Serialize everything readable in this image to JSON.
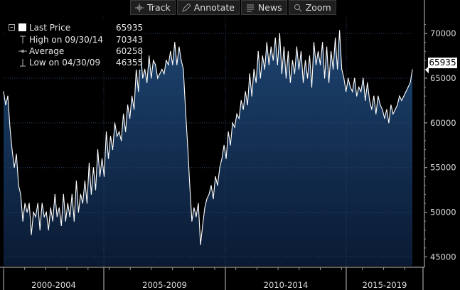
{
  "toolbar": {
    "track_label": "Track",
    "annotate_label": "Annotate",
    "news_label": "News",
    "zoom_label": "Zoom"
  },
  "legend": {
    "last": {
      "label": "Last Price",
      "value": "65935"
    },
    "high": {
      "label": "High on 09/30/14",
      "value": "70343"
    },
    "average": {
      "label": "Average",
      "value": "60258"
    },
    "low": {
      "label": "Low on 04/30/09",
      "value": "46355"
    }
  },
  "last_price_tag": "65935",
  "colors": {
    "background": "#000000",
    "area_top": "#1b3e66",
    "area_bottom": "#0b1d36",
    "line": "#ffffff",
    "grid": "#2a4566"
  },
  "chart_data": {
    "type": "area",
    "period_labels": [
      "2000-2004",
      "2005-2009",
      "2010-2014",
      "2015-2019"
    ],
    "y_ticks": [
      45000,
      50000,
      55000,
      60000,
      65000,
      70000
    ],
    "ylim": [
      44000,
      72000
    ],
    "xlim": [
      0,
      238
    ],
    "grid": true,
    "y_axis_position": "right",
    "legend_position": "top-left",
    "series": [
      {
        "values": [
          63500,
          62000,
          63000,
          59500,
          57000,
          55000,
          56500,
          53000,
          52000,
          49000,
          51000,
          50000,
          51000,
          47500,
          50000,
          49500,
          51000,
          48000,
          51000,
          49500,
          50000,
          48000,
          50500,
          49000,
          52000,
          49500,
          50500,
          48500,
          52000,
          49000,
          51000,
          49500,
          52000,
          49000,
          53500,
          50000,
          52000,
          51000,
          53500,
          51000,
          55500,
          52000,
          55000,
          52500,
          57000,
          54000,
          56000,
          54000,
          59000,
          56000,
          58500,
          57000,
          60000,
          58500,
          59000,
          58000,
          61000,
          59000,
          62000,
          60500,
          63000,
          61500,
          66000,
          63500,
          68000,
          65000,
          66000,
          64500,
          67500,
          65000,
          67000,
          66500,
          65000,
          65500,
          66000,
          65500,
          67000,
          66500,
          68000,
          66500,
          69000,
          66500,
          68500,
          67000,
          66000,
          61500,
          57500,
          53000,
          49000,
          50500,
          49500,
          51000,
          46355,
          48500,
          50500,
          51500,
          52000,
          53000,
          51500,
          54000,
          53000,
          55000,
          56000,
          57500,
          56000,
          59000,
          57500,
          60000,
          59500,
          61000,
          60500,
          62500,
          61500,
          63500,
          62000,
          65500,
          63000,
          66000,
          64500,
          68000,
          65000,
          67500,
          66000,
          69000,
          66500,
          68500,
          67000,
          69500,
          66500,
          70000,
          65500,
          68500,
          65000,
          68000,
          64500,
          67000,
          65500,
          68500,
          66000,
          68000,
          64500,
          67000,
          65000,
          67500,
          64000,
          69000,
          66500,
          68000,
          66500,
          69000,
          65000,
          68500,
          64500,
          68000,
          66000,
          69500,
          66000,
          70343,
          66000,
          65000,
          63500,
          65000,
          64000,
          63500,
          65000,
          63000,
          64000,
          63500,
          65000,
          62500,
          64500,
          62500,
          61500,
          63000,
          61000,
          63000,
          62000,
          61500,
          60500,
          61500,
          60000,
          62000,
          61000,
          61500,
          62000,
          63000,
          62500,
          63000,
          63500,
          64000,
          64500,
          65935
        ],
        "high": {
          "date": "09/30/14",
          "value": 70343
        },
        "low": {
          "date": "04/30/09",
          "value": 46355
        },
        "average": 60258
      }
    ]
  }
}
